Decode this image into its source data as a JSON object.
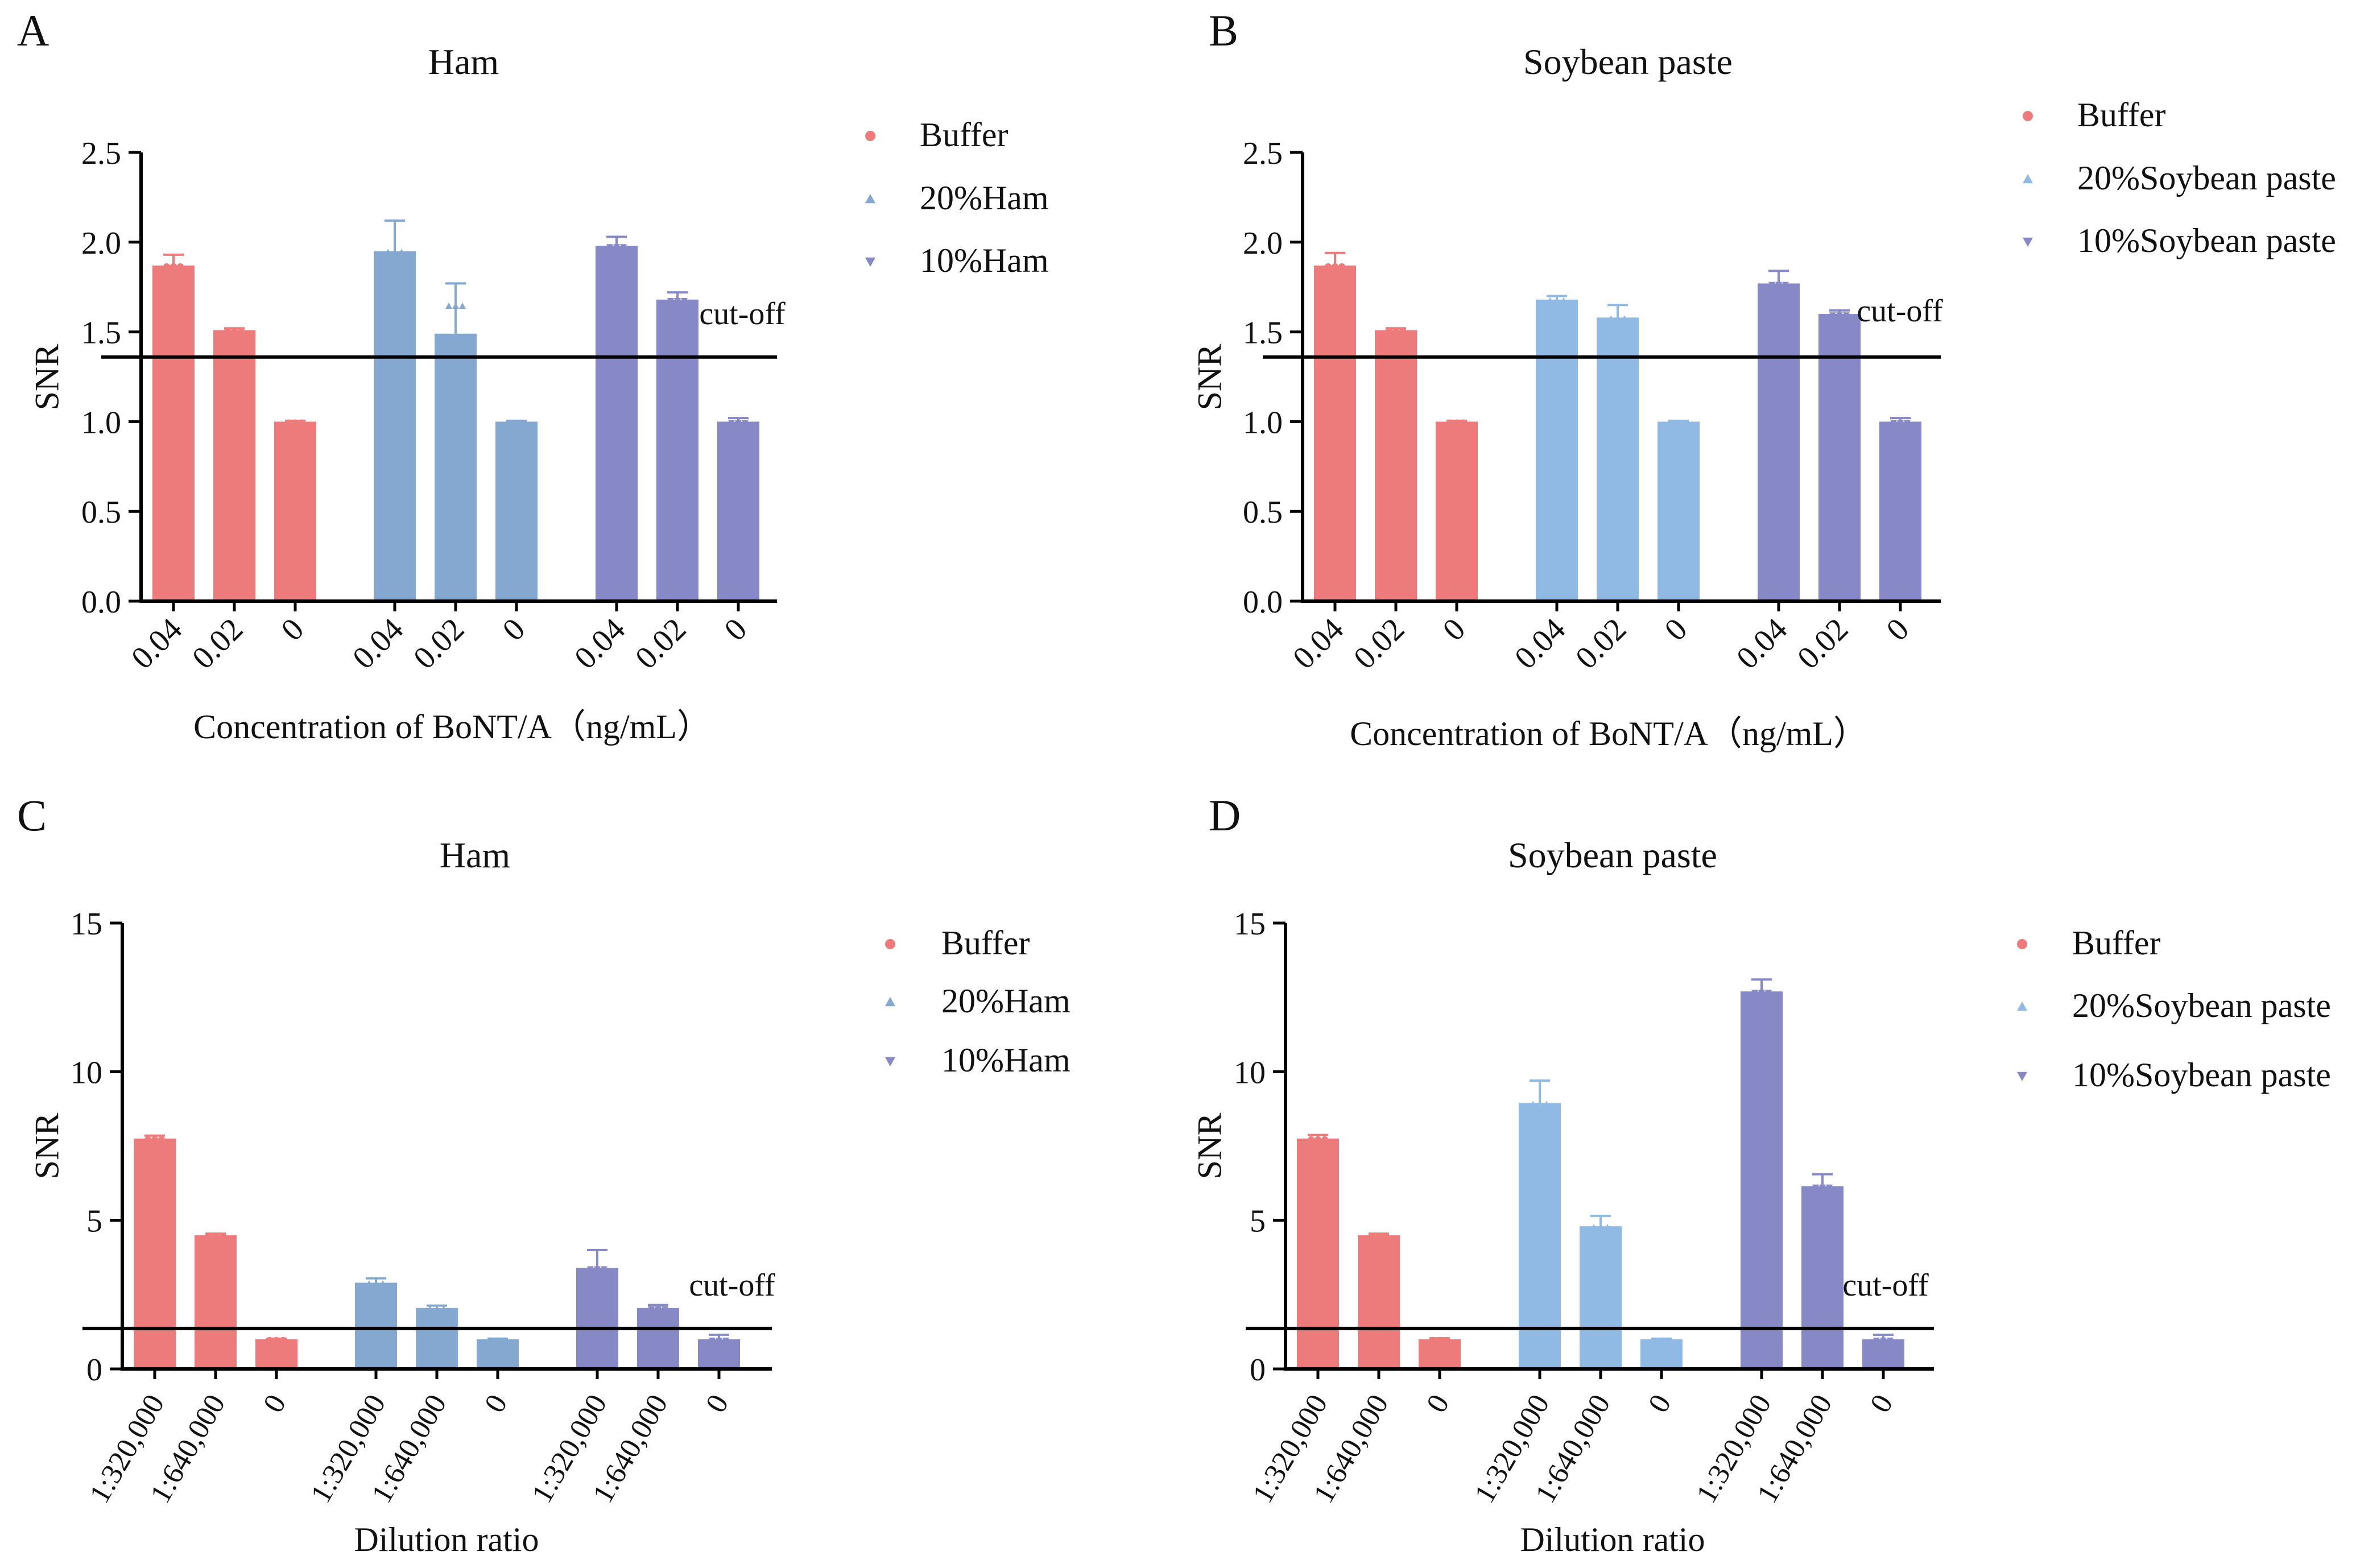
{
  "colors": {
    "buffer": "#EE7B7B",
    "ham20": "#84A8D0",
    "soy20": "#90BAE4",
    "tenpct": "#8689C6",
    "axis": "#000000",
    "errorbar": "#555555"
  },
  "chart_data": [
    {
      "panel_label": "A",
      "type": "bar",
      "title": "Ham",
      "xlabel": "Concentration of BoNT/A（ng/mL）",
      "ylabel": "SNR",
      "ylim": [
        0,
        2.5
      ],
      "yticks": [
        "0.0",
        "0.5",
        "1.0",
        "1.5",
        "2.0",
        "2.5"
      ],
      "cutoff_label": "cut-off",
      "cutoff": 1.36,
      "tick_labels": [
        "0.04",
        "0.02",
        "0",
        "0.04",
        "0.02",
        "0",
        "0.04",
        "0.02",
        "0"
      ],
      "legend_position": "top-right",
      "series": [
        {
          "name": "Buffer",
          "color_key": "buffer",
          "marker": "circle",
          "values": [
            1.87,
            1.51,
            1.0
          ],
          "errors": [
            0.06,
            0.01,
            0.005
          ]
        },
        {
          "name": "20%Ham",
          "color_key": "ham20",
          "marker": "triangle-up",
          "values": [
            1.95,
            1.49,
            1.0
          ],
          "errors": [
            0.17,
            0.28,
            0.005
          ]
        },
        {
          "name": "10%Ham",
          "color_key": "tenpct",
          "marker": "triangle-down",
          "values": [
            1.98,
            1.68,
            1.0
          ],
          "errors": [
            0.05,
            0.04,
            0.02
          ]
        }
      ]
    },
    {
      "panel_label": "B",
      "type": "bar",
      "title": "Soybean paste",
      "xlabel": "Concentration of BoNT/A（ng/mL）",
      "ylabel": "SNR",
      "ylim": [
        0,
        2.5
      ],
      "yticks": [
        "0.0",
        "0.5",
        "1.0",
        "1.5",
        "2.0",
        "2.5"
      ],
      "cutoff_label": "cut-off",
      "cutoff": 1.36,
      "tick_labels": [
        "0.04",
        "0.02",
        "0",
        "0.04",
        "0.02",
        "0",
        "0.04",
        "0.02",
        "0"
      ],
      "legend_position": "top-right",
      "series": [
        {
          "name": "Buffer",
          "color_key": "buffer",
          "marker": "circle",
          "values": [
            1.87,
            1.51,
            1.0
          ],
          "errors": [
            0.07,
            0.01,
            0.005
          ]
        },
        {
          "name": "20%Soybean paste",
          "color_key": "soy20",
          "marker": "triangle-up",
          "values": [
            1.68,
            1.58,
            1.0
          ],
          "errors": [
            0.02,
            0.07,
            0.005
          ]
        },
        {
          "name": "10%Soybean paste",
          "color_key": "tenpct",
          "marker": "triangle-down",
          "values": [
            1.77,
            1.6,
            1.0
          ],
          "errors": [
            0.07,
            0.02,
            0.02
          ]
        }
      ]
    },
    {
      "panel_label": "C",
      "type": "bar",
      "title": "Ham",
      "xlabel": "Dilution ratio",
      "ylabel": "SNR",
      "ylim": [
        0,
        15
      ],
      "yticks": [
        "0",
        "5",
        "10",
        "15"
      ],
      "cutoff_label": "cut-off",
      "cutoff": 1.36,
      "tick_labels": [
        "1:320,000",
        "1:640,000",
        "0",
        "1:320,000",
        "1:640,000",
        "0",
        "1:320,000",
        "1:640,000",
        "0"
      ],
      "legend_position": "top-right",
      "series": [
        {
          "name": "Buffer",
          "color_key": "buffer",
          "marker": "circle",
          "values": [
            7.75,
            4.5,
            1.0
          ],
          "errors": [
            0.1,
            0.05,
            0.02
          ]
        },
        {
          "name": "20%Ham",
          "color_key": "ham20",
          "marker": "triangle-up",
          "values": [
            2.9,
            2.05,
            1.0
          ],
          "errors": [
            0.15,
            0.08,
            0.02
          ]
        },
        {
          "name": "10%Ham",
          "color_key": "tenpct",
          "marker": "triangle-down",
          "values": [
            3.4,
            2.05,
            1.0
          ],
          "errors": [
            0.6,
            0.1,
            0.15
          ]
        }
      ]
    },
    {
      "panel_label": "D",
      "type": "bar",
      "title": "Soybean paste",
      "xlabel": "Dilution ratio",
      "ylabel": "SNR",
      "ylim": [
        0,
        15
      ],
      "yticks": [
        "0",
        "5",
        "10",
        "15"
      ],
      "cutoff_label": "cut-off",
      "cutoff": 1.36,
      "tick_labels": [
        "1:320,000",
        "1:640,000",
        "0",
        "1:320,000",
        "1:640,000",
        "0",
        "1:320,000",
        "1:640,000",
        "0"
      ],
      "legend_position": "top-right",
      "series": [
        {
          "name": "Buffer",
          "color_key": "buffer",
          "marker": "circle",
          "values": [
            7.75,
            4.5,
            1.0
          ],
          "errors": [
            0.12,
            0.05,
            0.03
          ]
        },
        {
          "name": "20%Soybean  paste",
          "color_key": "soy20",
          "marker": "triangle-up",
          "values": [
            8.95,
            4.8,
            1.0
          ],
          "errors": [
            0.75,
            0.35,
            0.02
          ]
        },
        {
          "name": "10%Soybean  paste",
          "color_key": "tenpct",
          "marker": "triangle-down",
          "values": [
            12.7,
            6.15,
            1.0
          ],
          "errors": [
            0.4,
            0.4,
            0.15
          ]
        }
      ]
    }
  ]
}
